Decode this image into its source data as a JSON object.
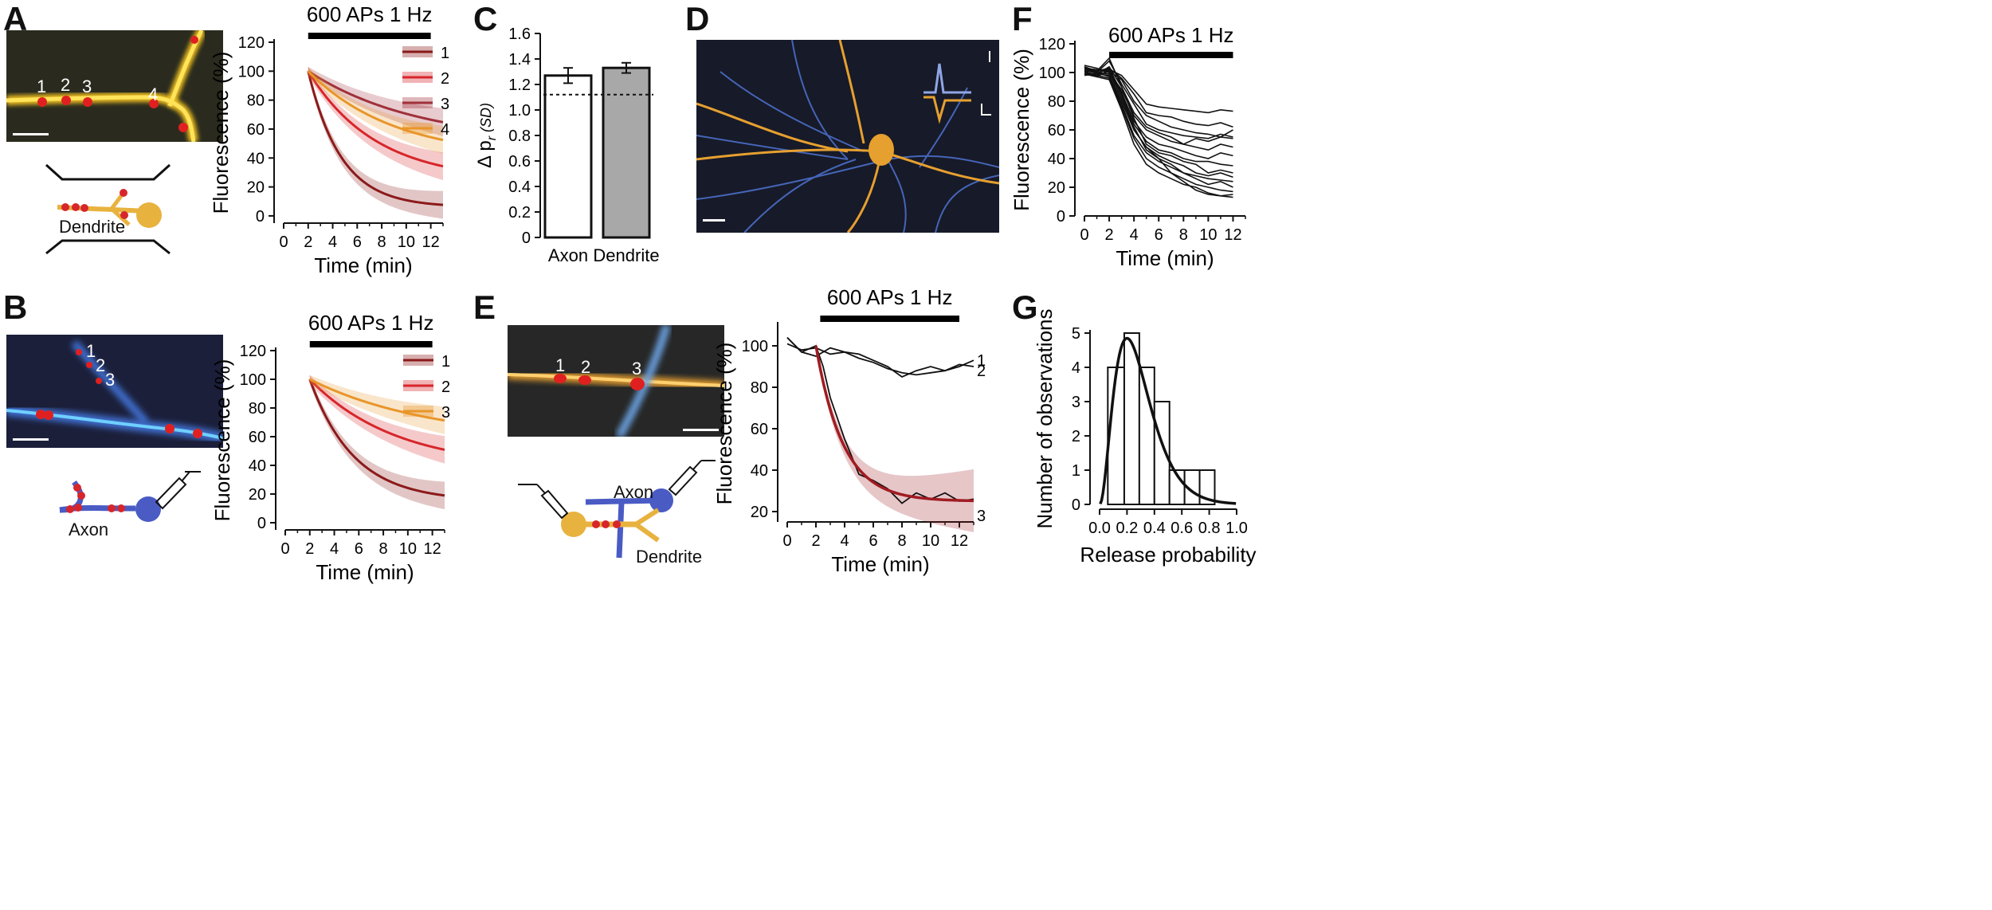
{
  "panels": {
    "A": {
      "letter": "A",
      "micro_labels": [
        "1",
        "2",
        "3",
        "4"
      ],
      "schematic_label": "Dendrite"
    },
    "B": {
      "letter": "B",
      "micro_labels": [
        "1",
        "2",
        "3"
      ],
      "schematic_label": "Axon"
    },
    "C": {
      "letter": "C"
    },
    "D": {
      "letter": "D"
    },
    "E": {
      "letter": "E",
      "micro_labels": [
        "1",
        "2",
        "3"
      ],
      "schematic_axon": "Axon",
      "schematic_dendrite": "Dendrite"
    },
    "F": {
      "letter": "F"
    },
    "G": {
      "letter": "G"
    }
  },
  "colors": {
    "dark_red": "#8b1a1a",
    "red": "#d7262b",
    "maroon": "#a0303a",
    "orange": "#e8962a",
    "axon_blue": "#4a5bc4",
    "dendrite_gold": "#e8b23e",
    "gray_bar": "#a8a8a8"
  },
  "chart_data": [
    {
      "id": "A",
      "type": "line",
      "title": "600 APs 1 Hz",
      "xlabel": "Time (min)",
      "ylabel": "Fluorescence (%)",
      "xlim": [
        0,
        13
      ],
      "ylim": [
        -5,
        120
      ],
      "xticks": [
        0,
        2,
        4,
        6,
        8,
        10,
        12
      ],
      "yticks": [
        0,
        20,
        40,
        60,
        80,
        100,
        120
      ],
      "stim_start": 2,
      "stim_end": 12,
      "series": [
        {
          "name": "1",
          "color": "#8b1a1a",
          "tau": 2.7,
          "end": 6
        },
        {
          "name": "2",
          "color": "#d7262b",
          "tau": 5.5,
          "end": 24
        },
        {
          "name": "3",
          "color": "#a0303a",
          "tau": 9.0,
          "end": 50
        },
        {
          "name": "4",
          "color": "#e8962a",
          "tau": 7.0,
          "end": 40
        }
      ]
    },
    {
      "id": "B",
      "type": "line",
      "title": "600 APs 1 Hz",
      "xlabel": "Time (min)",
      "ylabel": "Fluorescence (%)",
      "xlim": [
        0,
        13
      ],
      "ylim": [
        -5,
        120
      ],
      "xticks": [
        0,
        2,
        4,
        6,
        8,
        10,
        12
      ],
      "yticks": [
        0,
        20,
        40,
        60,
        80,
        100,
        120
      ],
      "stim_start": 2,
      "stim_end": 12,
      "series": [
        {
          "name": "1",
          "color": "#8b1a1a",
          "tau": 3.6,
          "end": 15
        },
        {
          "name": "2",
          "color": "#d7262b",
          "tau": 7.0,
          "end": 38
        },
        {
          "name": "3",
          "color": "#e8962a",
          "tau": 10.0,
          "end": 57
        }
      ]
    },
    {
      "id": "C",
      "type": "bar",
      "ylabel": "Δ p",
      "ylabel_sub": "r",
      "ylabel_suffix": "(SD)",
      "categories": [
        "Axon",
        "Dendrite"
      ],
      "values": [
        1.27,
        1.33
      ],
      "errors": [
        0.06,
        0.04
      ],
      "colors": [
        "#ffffff",
        "#a8a8a8"
      ],
      "reference_line": 1.12,
      "ylim": [
        0,
        1.6
      ],
      "yticks": [
        "0",
        "0.2",
        "0.4",
        "0.6",
        "0.8",
        "1.0",
        "1.2",
        "1.4",
        "1.6"
      ]
    },
    {
      "id": "E",
      "type": "line",
      "title": "600 APs 1 Hz",
      "xlabel": "Time (min)",
      "ylabel": "Fluorescence (%)",
      "xlim": [
        0,
        13
      ],
      "ylim": [
        15,
        110
      ],
      "xticks": [
        0,
        2,
        4,
        6,
        8,
        10,
        12
      ],
      "yticks": [
        20,
        40,
        60,
        80,
        100
      ],
      "stim_start": 2.3,
      "stim_end": 12,
      "trace_labels": [
        "1",
        "2",
        "3"
      ],
      "traces": [
        {
          "name": "1",
          "x": [
            0,
            1,
            2,
            3,
            4,
            5,
            6,
            7,
            8,
            9,
            10,
            11,
            12,
            13
          ],
          "y": [
            104,
            97,
            95,
            99,
            97,
            96,
            93,
            90,
            85,
            88,
            90,
            88,
            90,
            93
          ]
        },
        {
          "name": "2",
          "x": [
            0,
            1,
            2,
            3,
            4,
            5,
            6,
            7,
            8,
            9,
            10,
            11,
            12,
            13
          ],
          "y": [
            101,
            98,
            99,
            96,
            97,
            94,
            92,
            89,
            87,
            86,
            87,
            88,
            91,
            90
          ]
        },
        {
          "name": "3",
          "x": [
            0,
            1,
            2,
            2.5,
            3,
            4,
            5,
            6,
            7,
            8,
            9,
            10,
            11,
            12,
            13
          ],
          "y": [
            104,
            97,
            100,
            90,
            75,
            55,
            38,
            35,
            31,
            24,
            29,
            26,
            29,
            25,
            26
          ]
        }
      ],
      "fit": {
        "color": "#a01c22",
        "tau": 1.9,
        "start": 100,
        "end": 25
      }
    },
    {
      "id": "F",
      "type": "line",
      "title": "600 APs 1 Hz",
      "xlabel": "Time (min)",
      "ylabel": "Fluorescence (%)",
      "xlim": [
        0,
        13
      ],
      "ylim": [
        0,
        120
      ],
      "xticks": [
        0,
        2,
        4,
        6,
        8,
        10,
        12
      ],
      "yticks": [
        0,
        20,
        40,
        60,
        80,
        100,
        120
      ],
      "stim_start": 2,
      "stim_end": 12,
      "traces": [
        {
          "y": [
            104,
            100,
            102,
            98,
            88,
            78,
            76,
            75,
            74,
            73,
            72,
            74,
            73
          ]
        },
        {
          "y": [
            102,
            101,
            103,
            96,
            85,
            72,
            70,
            69,
            66,
            64,
            63,
            65,
            62
          ]
        },
        {
          "y": [
            100,
            98,
            101,
            95,
            80,
            70,
            66,
            62,
            60,
            58,
            57,
            55,
            54
          ]
        },
        {
          "y": [
            103,
            100,
            108,
            92,
            78,
            64,
            60,
            58,
            56,
            55,
            54,
            57,
            55
          ]
        },
        {
          "y": [
            98,
            99,
            104,
            90,
            72,
            62,
            58,
            55,
            50,
            48,
            46,
            50,
            48
          ]
        },
        {
          "y": [
            105,
            103,
            100,
            88,
            70,
            60,
            56,
            52,
            50,
            54,
            52,
            55,
            60
          ]
        },
        {
          "y": [
            101,
            100,
            99,
            86,
            66,
            55,
            50,
            48,
            45,
            42,
            40,
            44,
            42
          ]
        },
        {
          "y": [
            99,
            97,
            102,
            84,
            64,
            52,
            46,
            44,
            40,
            38,
            38,
            36,
            35
          ]
        },
        {
          "y": [
            104,
            101,
            110,
            90,
            68,
            50,
            44,
            42,
            38,
            36,
            30,
            32,
            30
          ]
        },
        {
          "y": [
            100,
            99,
            98,
            80,
            60,
            48,
            42,
            38,
            35,
            30,
            28,
            30,
            27
          ]
        },
        {
          "y": [
            102,
            100,
            97,
            78,
            56,
            44,
            38,
            34,
            30,
            28,
            26,
            25,
            24
          ]
        },
        {
          "y": [
            103,
            102,
            100,
            82,
            62,
            46,
            40,
            36,
            30,
            26,
            22,
            24,
            20
          ]
        },
        {
          "y": [
            99,
            98,
            96,
            76,
            54,
            40,
            34,
            30,
            26,
            22,
            20,
            18,
            17
          ]
        },
        {
          "y": [
            101,
            97,
            95,
            74,
            50,
            36,
            30,
            26,
            22,
            20,
            16,
            14,
            15
          ]
        },
        {
          "y": [
            104,
            99,
            103,
            86,
            60,
            48,
            40,
            30,
            24,
            18,
            15,
            14,
            13
          ]
        }
      ]
    },
    {
      "id": "G",
      "type": "bar",
      "xlabel": "Release probability",
      "ylabel": "Number of observations",
      "xlim": [
        0,
        1.0
      ],
      "ylim": [
        0,
        5
      ],
      "xticks": [
        "0.0",
        "0.2",
        "0.4",
        "0.6",
        "0.8",
        "1.0"
      ],
      "yticks": [
        "0",
        "1",
        "2",
        "3",
        "4",
        "5"
      ],
      "bin_edges": [
        0.06,
        0.18,
        0.29,
        0.4,
        0.51,
        0.62,
        0.73,
        0.84
      ],
      "counts": [
        4,
        5,
        4,
        3,
        1,
        1,
        1
      ],
      "fit": {
        "mode": 0.2,
        "peak": 4.85
      }
    }
  ]
}
